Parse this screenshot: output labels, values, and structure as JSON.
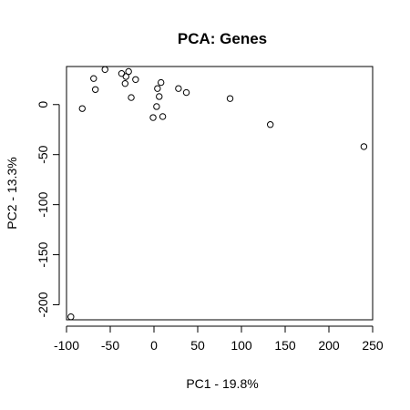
{
  "chart_data": {
    "type": "scatter",
    "title": "PCA: Genes",
    "xlabel": "PC1 - 19.8%",
    "ylabel": "PC2 - 13.3%",
    "xlim": [
      -100,
      250
    ],
    "ylim": [
      -215,
      38
    ],
    "xticks": [
      -100,
      -50,
      0,
      50,
      100,
      150,
      200,
      250
    ],
    "yticks": [
      -200,
      -150,
      -100,
      -50,
      0
    ],
    "xtick_labels": [
      "-100",
      "-50",
      "0",
      "50",
      "100",
      "150",
      "200",
      "250"
    ],
    "ytick_labels": [
      "-200",
      "-150",
      "-100",
      "-50",
      "0"
    ],
    "grid": false,
    "marker": "open-circle",
    "color": "#000000",
    "points": [
      {
        "x": -95,
        "y": -212
      },
      {
        "x": -82,
        "y": -4
      },
      {
        "x": -69,
        "y": 26
      },
      {
        "x": -67,
        "y": 15
      },
      {
        "x": -56,
        "y": 35
      },
      {
        "x": -37,
        "y": 31
      },
      {
        "x": -33,
        "y": 21
      },
      {
        "x": -32,
        "y": 28
      },
      {
        "x": -29,
        "y": 33
      },
      {
        "x": -26,
        "y": 7
      },
      {
        "x": -21,
        "y": 25
      },
      {
        "x": -1,
        "y": -13
      },
      {
        "x": 3,
        "y": -2
      },
      {
        "x": 4,
        "y": 16
      },
      {
        "x": 6,
        "y": 8
      },
      {
        "x": 8,
        "y": 22
      },
      {
        "x": 10,
        "y": -12
      },
      {
        "x": 28,
        "y": 16
      },
      {
        "x": 37,
        "y": 12
      },
      {
        "x": 87,
        "y": 6
      },
      {
        "x": 133,
        "y": -20
      },
      {
        "x": 240,
        "y": -42
      }
    ]
  }
}
